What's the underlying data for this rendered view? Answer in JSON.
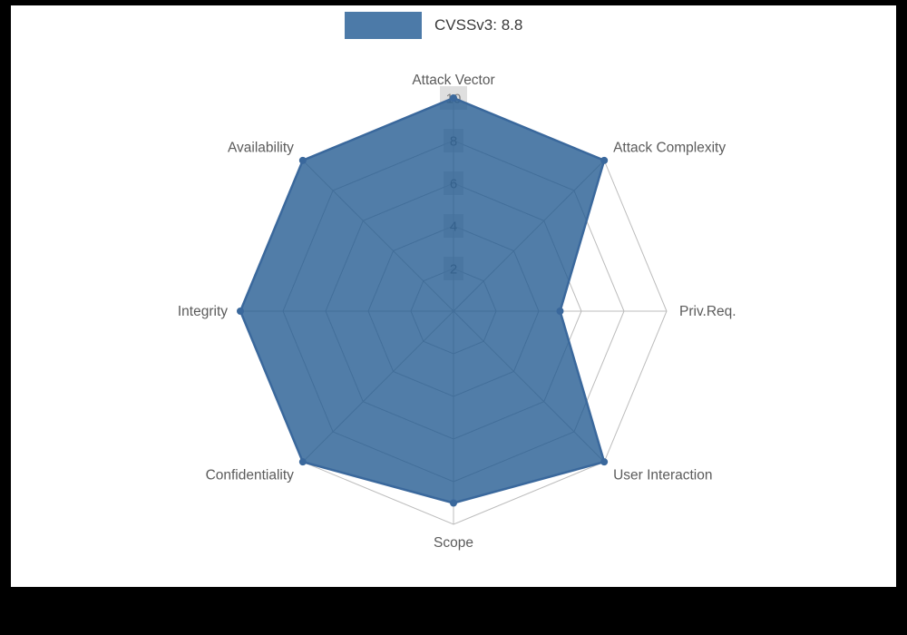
{
  "page": {
    "background": "#000000",
    "panel_background": "#ffffff"
  },
  "chart_data": {
    "type": "radar",
    "title": "",
    "legend": {
      "label": "CVSSv3: 8.8",
      "swatch_color": "#4c7aa8",
      "text_color": "#3a3a3a",
      "position": "top-center"
    },
    "categories": [
      "Attack Vector",
      "Attack Complexity",
      "Priv.Req.",
      "User Interaction",
      "Scope",
      "Confidentiality",
      "Integrity",
      "Availability"
    ],
    "series": [
      {
        "name": "CVSSv3: 8.8",
        "values": [
          10,
          10,
          5,
          10,
          9,
          10,
          10,
          10
        ]
      }
    ],
    "radial_axis": {
      "min": 0,
      "max": 10,
      "ticks": [
        2,
        4,
        6,
        8,
        10
      ]
    },
    "grid": "on",
    "colors": {
      "fill": "#205890",
      "fill_opacity": 0.78,
      "line": "#3a689c",
      "marker": "#3a689c",
      "grid": "#bcbcbc",
      "tick_text": "#7f7f7f",
      "tick_bg": "#c9c9c9",
      "label_text": "#5b5b5b"
    }
  }
}
